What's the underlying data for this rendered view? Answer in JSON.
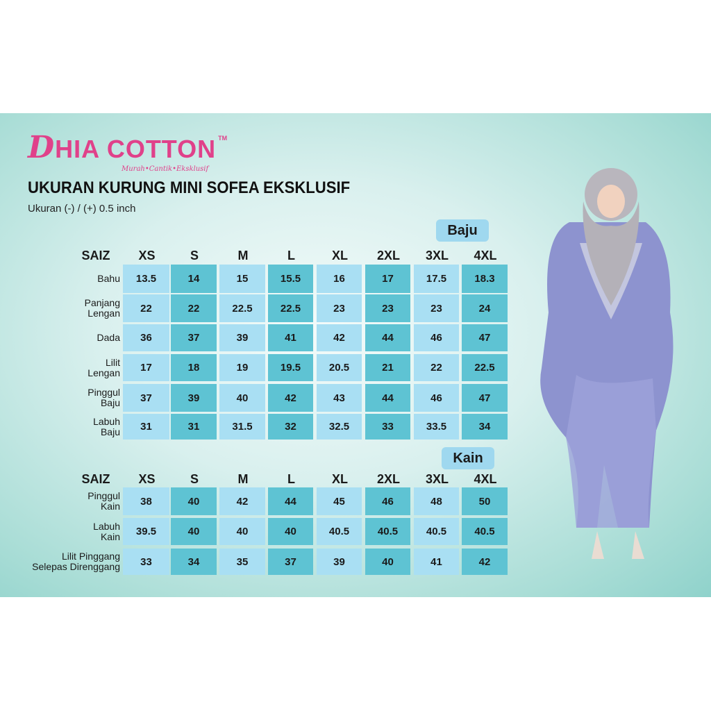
{
  "brand": {
    "name_initial": "D",
    "name_rest": "HIA COTTON",
    "trademark": "TM",
    "tagline": "Murah•Cantik•Eksklusif"
  },
  "title": "UKURAN KURUNG MINI SOFEA EKSKLUSIF",
  "subtitle": "Ukuran (-) / (+) 0.5 inch",
  "colors": {
    "brand": "#e0418a",
    "cell_light": "#a9dff3",
    "cell_dark": "#5ec3d3",
    "badge": "#9fd8ef"
  },
  "baju": {
    "badge": "Baju",
    "header_label": "SAIZ",
    "sizes": [
      "XS",
      "S",
      "M",
      "L",
      "XL",
      "2XL",
      "3XL",
      "4XL"
    ],
    "rows": [
      {
        "label": [
          "Bahu"
        ],
        "values": [
          "13.5",
          "14",
          "15",
          "15.5",
          "16",
          "17",
          "17.5",
          "18.3"
        ]
      },
      {
        "label": [
          "Panjang",
          "Lengan"
        ],
        "values": [
          "22",
          "22",
          "22.5",
          "22.5",
          "23",
          "23",
          "23",
          "24"
        ]
      },
      {
        "label": [
          "Dada"
        ],
        "values": [
          "36",
          "37",
          "39",
          "41",
          "42",
          "44",
          "46",
          "47"
        ]
      },
      {
        "label": [
          "Lilit",
          "Lengan"
        ],
        "values": [
          "17",
          "18",
          "19",
          "19.5",
          "20.5",
          "21",
          "22",
          "22.5"
        ]
      },
      {
        "label": [
          "Pinggul",
          "Baju"
        ],
        "values": [
          "37",
          "39",
          "40",
          "42",
          "43",
          "44",
          "46",
          "47"
        ]
      },
      {
        "label": [
          "Labuh",
          "Baju"
        ],
        "values": [
          "31",
          "31",
          "31.5",
          "32",
          "32.5",
          "33",
          "33.5",
          "34"
        ]
      }
    ]
  },
  "kain": {
    "badge": "Kain",
    "header_label": "SAIZ",
    "sizes": [
      "XS",
      "S",
      "M",
      "L",
      "XL",
      "2XL",
      "3XL",
      "4XL"
    ],
    "rows": [
      {
        "label": [
          "Pinggul",
          "Kain"
        ],
        "values": [
          "38",
          "40",
          "42",
          "44",
          "45",
          "46",
          "48",
          "50"
        ]
      },
      {
        "label": [
          "Labuh",
          "Kain"
        ],
        "values": [
          "39.5",
          "40",
          "40",
          "40",
          "40.5",
          "40.5",
          "40.5",
          "40.5"
        ]
      },
      {
        "label": [
          "Lilit Pinggang",
          "Selepas Direnggang"
        ],
        "values": [
          "33",
          "34",
          "35",
          "37",
          "39",
          "40",
          "41",
          "42"
        ]
      }
    ]
  }
}
